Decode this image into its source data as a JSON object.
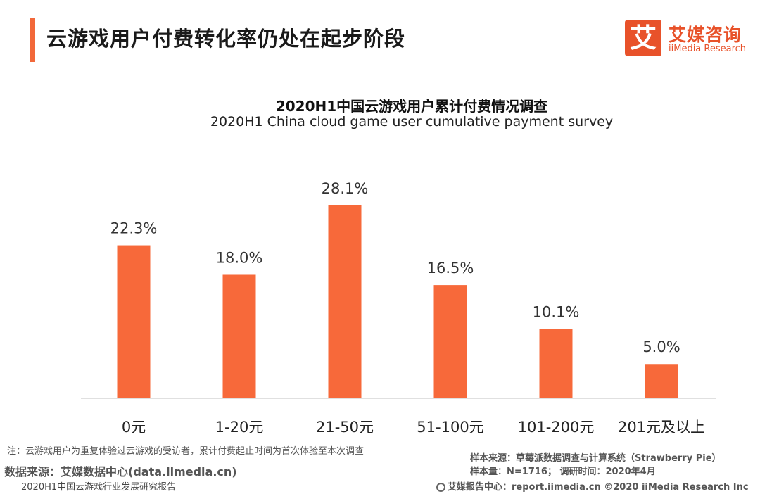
{
  "header": {
    "title": "云游戏用户付费转化率仍处在起步阶段"
  },
  "logo": {
    "mark": "艾",
    "name_cn": "艾媒咨询",
    "name_en": "iiMedia Research"
  },
  "chart_data": {
    "type": "bar",
    "title": "2020H1中国云游戏用户累计付费情况调查",
    "subtitle": "2020H1 China cloud game user cumulative payment survey",
    "categories": [
      "0元",
      "1-20元",
      "21-50元",
      "51-100元",
      "101-200元",
      "201元及以上"
    ],
    "values": [
      22.3,
      18.0,
      28.1,
      16.5,
      10.1,
      5.0
    ],
    "value_labels": [
      "22.3%",
      "18.0%",
      "28.1%",
      "16.5%",
      "10.1%",
      "5.0%"
    ],
    "unit": "%",
    "xlabel": "",
    "ylabel": "",
    "ylim": [
      0,
      28.1
    ],
    "grid": false,
    "bar_color": "#f7693a",
    "axis_color": "#d6d6d6"
  },
  "footer": {
    "note": "注：云游戏用户为重复体验过云游戏的受访者，累计付费起止时间为首次体验至本次调查",
    "data_source": "数据来源：艾媒数据中心(data.iimedia.cn)",
    "report_name": "2020H1中国云游戏行业发展研究报告",
    "sample_source": "样本来源：草莓派数据调查与计算系统（Strawberry Pie）",
    "sample_size": "样本量：N=1716；  调研时间：2020年4月",
    "report_center": "艾媒报告中心：report.iimedia.cn  ©2020  iiMedia Research  Inc"
  }
}
